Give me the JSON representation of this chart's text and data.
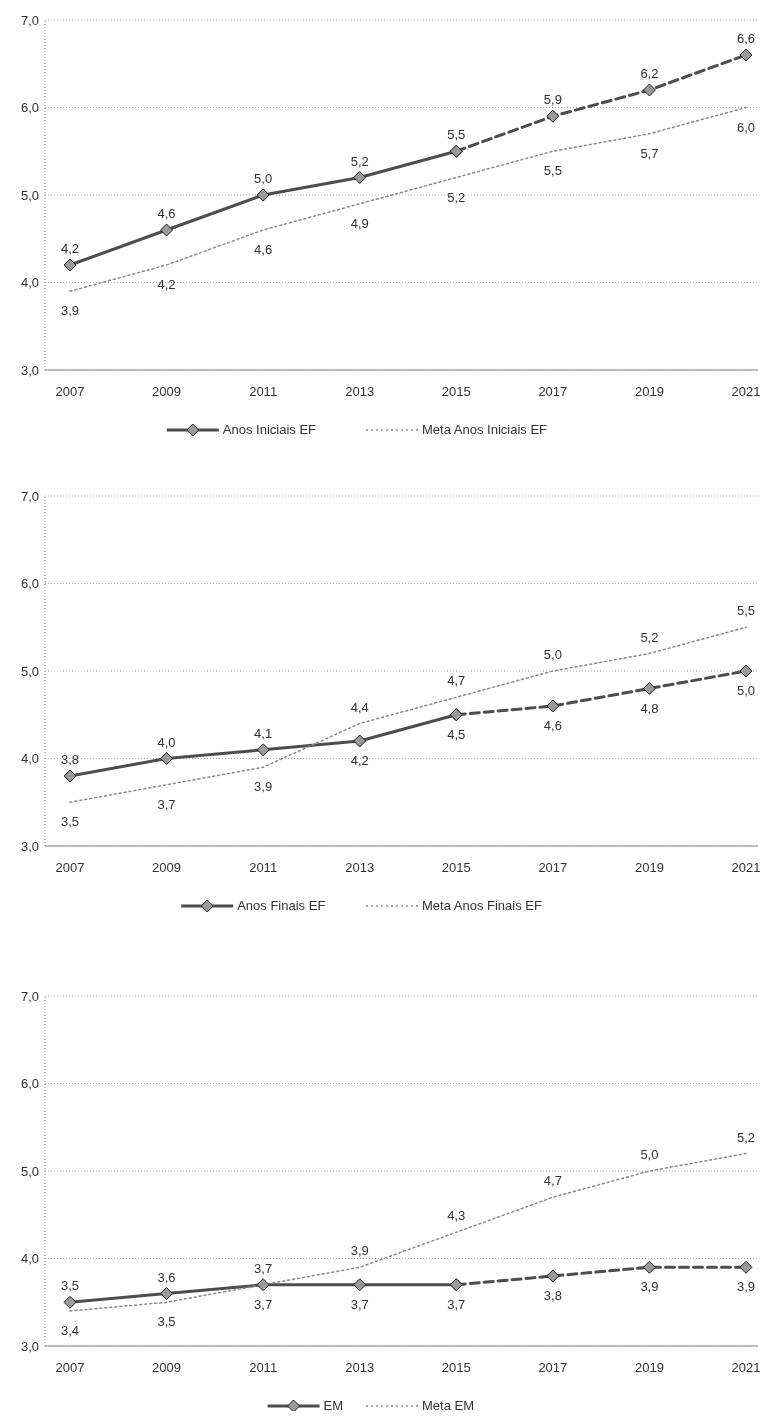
{
  "chart_data": [
    {
      "type": "line",
      "categories": [
        "2007",
        "2009",
        "2011",
        "2013",
        "2015",
        "2017",
        "2019",
        "2021"
      ],
      "ylim": [
        3,
        7
      ],
      "yticks": [
        {
          "value": 3,
          "label": "3,0"
        },
        {
          "value": 4,
          "label": "4,0"
        },
        {
          "value": 5,
          "label": "5,0"
        },
        {
          "value": 6,
          "label": "6,0"
        },
        {
          "value": 7,
          "label": "7,0"
        }
      ],
      "grid": "y",
      "legend": "bottom",
      "series": [
        {
          "name": "Anos Iniciais EF",
          "color": "#4d4d4d",
          "marker": "diamond",
          "line_style": "solid",
          "values": [
            4.2,
            4.6,
            5.0,
            5.2,
            5.5,
            null,
            null,
            null
          ],
          "value_labels": [
            "4,2",
            "4,6",
            "5,0",
            "5,2",
            "5,5",
            null,
            null,
            null
          ]
        },
        {
          "color": "#4d4d4d",
          "marker": "diamond",
          "line_style": "dashed",
          "values": [
            null,
            null,
            null,
            null,
            5.5,
            5.9,
            6.2,
            6.6
          ],
          "value_labels": [
            null,
            null,
            null,
            null,
            null,
            "5,9",
            "6,2",
            "6,6"
          ]
        },
        {
          "name": "Meta Anos Iniciais EF",
          "color": "#8a8a8a",
          "marker": "none",
          "line_style": "dotted",
          "values": [
            3.9,
            4.2,
            4.6,
            4.9,
            5.2,
            5.5,
            5.7,
            6.0
          ],
          "value_labels": [
            "3,9",
            "4,2",
            "4,6",
            "4,9",
            "5,2",
            "5,5",
            "5,7",
            "6,0"
          ]
        }
      ]
    },
    {
      "type": "line",
      "categories": [
        "2007",
        "2009",
        "2011",
        "2013",
        "2015",
        "2017",
        "2019",
        "2021"
      ],
      "ylim": [
        3,
        7
      ],
      "yticks": [
        {
          "value": 3,
          "label": "3,0"
        },
        {
          "value": 4,
          "label": "4,0"
        },
        {
          "value": 5,
          "label": "5,0"
        },
        {
          "value": 6,
          "label": "6,0"
        },
        {
          "value": 7,
          "label": "7,0"
        }
      ],
      "grid": "y",
      "legend": "bottom",
      "series": [
        {
          "name": "Anos Finais EF",
          "color": "#4d4d4d",
          "marker": "diamond",
          "line_style": "solid",
          "values": [
            3.8,
            4.0,
            4.1,
            4.2,
            4.5,
            null,
            null,
            null
          ],
          "value_labels": [
            "3,8",
            "4,0",
            "4,1",
            "4,2",
            "4,5",
            null,
            null,
            null
          ]
        },
        {
          "color": "#4d4d4d",
          "marker": "diamond",
          "line_style": "dashed",
          "values": [
            null,
            null,
            null,
            null,
            4.5,
            4.6,
            4.8,
            5.0
          ],
          "value_labels": [
            null,
            null,
            null,
            null,
            null,
            "4,6",
            "4,8",
            "5,0"
          ]
        },
        {
          "name": "Meta Anos Finais EF",
          "color": "#8a8a8a",
          "marker": "none",
          "line_style": "dotted",
          "values": [
            3.5,
            3.7,
            3.9,
            4.4,
            4.7,
            5.0,
            5.2,
            5.5
          ],
          "value_labels": [
            "3,5",
            "3,7",
            "3,9",
            "4,4",
            "4,7",
            "5,0",
            "5,2",
            "5,5"
          ]
        }
      ]
    },
    {
      "type": "line",
      "categories": [
        "2007",
        "2009",
        "2011",
        "2013",
        "2015",
        "2017",
        "2019",
        "2021"
      ],
      "ylim": [
        3,
        7
      ],
      "yticks": [
        {
          "value": 3,
          "label": "3,0"
        },
        {
          "value": 4,
          "label": "4,0"
        },
        {
          "value": 5,
          "label": "5,0"
        },
        {
          "value": 6,
          "label": "6,0"
        },
        {
          "value": 7,
          "label": "7,0"
        }
      ],
      "grid": "y",
      "legend": "bottom",
      "series": [
        {
          "name": "EM",
          "color": "#4d4d4d",
          "marker": "diamond",
          "line_style": "solid",
          "values": [
            3.5,
            3.6,
            3.7,
            3.7,
            3.7,
            null,
            null,
            null
          ],
          "value_labels": [
            "3,5",
            "3,6",
            "3,7",
            "3,7",
            "3,7",
            null,
            null,
            null
          ]
        },
        {
          "color": "#4d4d4d",
          "marker": "diamond",
          "line_style": "dashed",
          "values": [
            null,
            null,
            null,
            null,
            3.7,
            3.8,
            3.9,
            3.9
          ],
          "value_labels": [
            null,
            null,
            null,
            null,
            null,
            "3,8",
            "3,9",
            "3,9"
          ]
        },
        {
          "name": "Meta EM",
          "color": "#8a8a8a",
          "marker": "none",
          "line_style": "dotted",
          "values": [
            3.4,
            3.5,
            3.7,
            3.9,
            4.3,
            4.7,
            5.0,
            5.2
          ],
          "value_labels": [
            "3,4",
            "3,5",
            "3,7",
            "3,9",
            "4,3",
            "4,7",
            "5,0",
            "5,2"
          ]
        }
      ]
    }
  ]
}
